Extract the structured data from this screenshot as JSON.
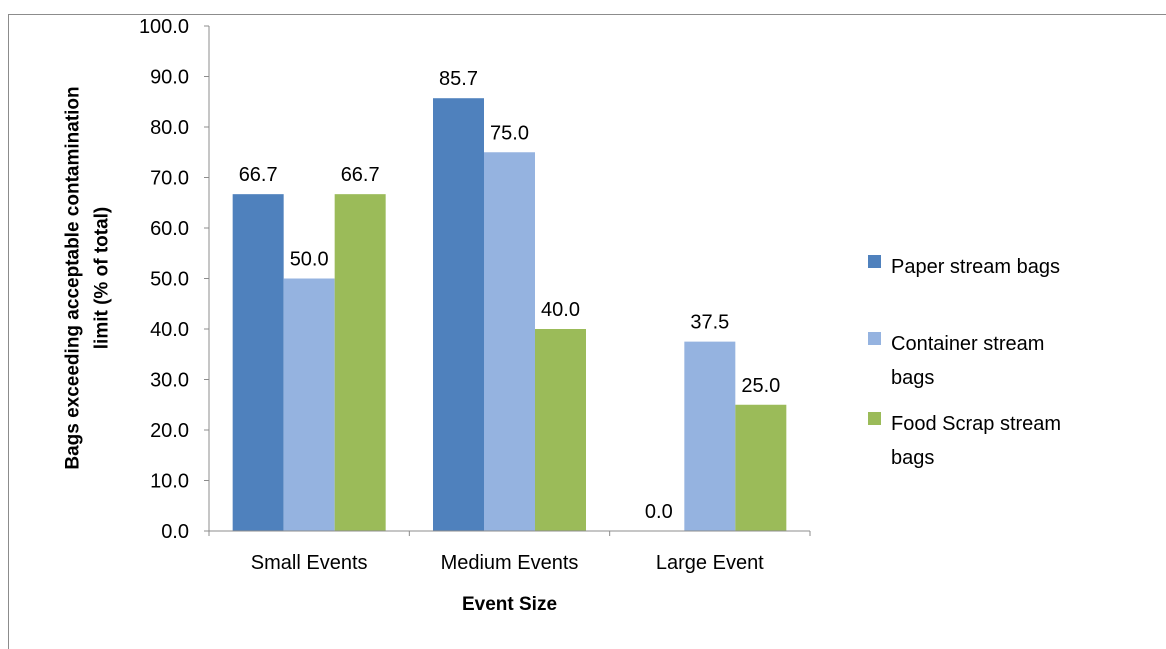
{
  "caption": "",
  "chart_data": {
    "type": "bar",
    "title": "",
    "xlabel": "Event Size",
    "ylabel": "Bags exceeding acceptable contamination limit (% of total)",
    "ylabel_lines": [
      "Bags exceeding acceptable contamination",
      "limit (% of total)"
    ],
    "categories": [
      "Small Events",
      "Medium Events",
      "Large Event"
    ],
    "ylim": [
      0,
      100
    ],
    "yticks": [
      0,
      10,
      20,
      30,
      40,
      50,
      60,
      70,
      80,
      90,
      100
    ],
    "ytick_labels": [
      "0.0",
      "10.0",
      "20.0",
      "30.0",
      "40.0",
      "50.0",
      "60.0",
      "70.0",
      "80.0",
      "90.0",
      "100.0"
    ],
    "grid": false,
    "legend_position": "right",
    "series": [
      {
        "name": "Paper stream bags",
        "name_lines": [
          "Paper stream bags"
        ],
        "color": "#4f81bd",
        "values": [
          66.7,
          85.7,
          0.0
        ],
        "labels": [
          "66.7",
          "85.7",
          "0.0"
        ]
      },
      {
        "name": "Container stream bags",
        "name_lines": [
          "Container stream",
          "bags"
        ],
        "color": "#95b3e0",
        "values": [
          50.0,
          75.0,
          37.5
        ],
        "labels": [
          "50.0",
          "75.0",
          "37.5"
        ]
      },
      {
        "name": "Food Scrap stream bags",
        "name_lines": [
          "Food Scrap stream",
          "bags"
        ],
        "color": "#9bbb59",
        "values": [
          66.7,
          40.0,
          25.0
        ],
        "labels": [
          "66.7",
          "40.0",
          "25.0"
        ]
      }
    ]
  }
}
